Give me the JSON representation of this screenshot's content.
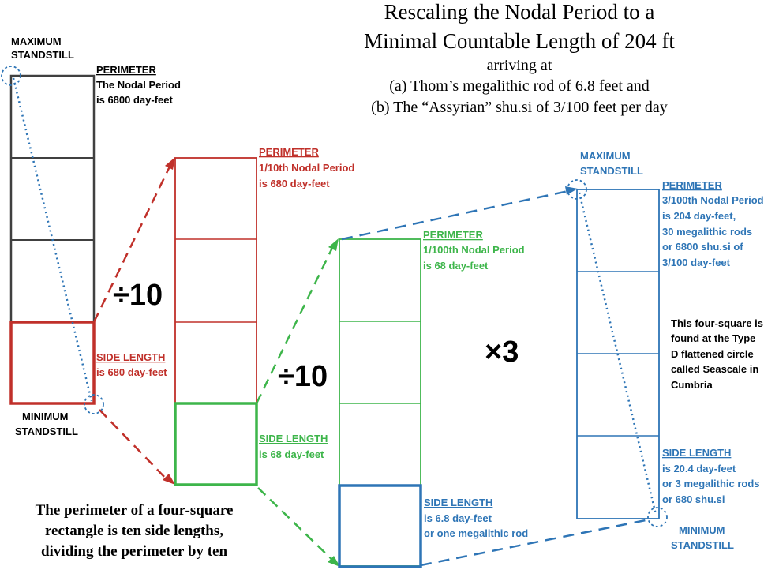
{
  "title": {
    "line1": "Rescaling the Nodal Period to a",
    "line2": "Minimal Countable Length of 204 ft",
    "line3": "arriving at",
    "line4": "(a) Thom’s megalithic rod of 6.8 feet and",
    "line5": "(b) The “Assyrian” shu.si of 3/100 feet per day"
  },
  "colors": {
    "black": "#404040",
    "red": "#c0302a",
    "green": "#3db54a",
    "blue": "#2e75b6",
    "text": "#000000"
  },
  "first_rect": {
    "max_label_1": "MAXIMUM",
    "max_label_2": "STANDSTILL",
    "perimeter_heading": "PERIMETER",
    "perimeter_line1": "The Nodal Period",
    "perimeter_line2": "is 6800 day-feet",
    "min_label_1": "MINIMUM",
    "min_label_2": "STANDSTILL"
  },
  "second_rect": {
    "perimeter_heading": "PERIMETER",
    "perimeter_line1": "1/10th Nodal Period",
    "perimeter_line2": "is 680 day-feet",
    "side_heading": "SIDE LENGTH",
    "side_line1": "is 680 day-feet"
  },
  "third_rect": {
    "perimeter_heading": "PERIMETER",
    "perimeter_line1": "1/100th Nodal Period",
    "perimeter_line2": "is 68 day-feet",
    "side_heading": "SIDE LENGTH",
    "side_line1": "is 68 day-feet"
  },
  "fourth_rect": {
    "side_heading": "SIDE LENGTH",
    "side_line1": "is 6.8 day-feet",
    "side_line2": "or one megalithic rod"
  },
  "fifth_rect": {
    "max_label_1": "MAXIMUM",
    "max_label_2": "STANDSTILL",
    "perimeter_heading": "PERIMETER",
    "perimeter_line1": "3/100th Nodal Period",
    "perimeter_line2": "is 204 day-feet,",
    "perimeter_line3": "30 megalithic rods",
    "perimeter_line4": "or 6800 shu.si of",
    "perimeter_line5": "3/100 day-feet",
    "side_heading": "SIDE LENGTH",
    "side_line1": "is 20.4 day-feet",
    "side_line2": "or 3 megalithic rods",
    "side_line3": "or 680 shu.si",
    "min_label_1": "MINIMUM",
    "min_label_2": "STANDSTILL"
  },
  "operators": {
    "divide_1": "÷10",
    "divide_2": "÷10",
    "multiply": "×3"
  },
  "note": {
    "line1": "This four-square is",
    "line2": "found at the Type",
    "line3": "D flattened circle",
    "line4": "called  Seascale in",
    "line5": "Cumbria"
  },
  "caption": {
    "line1": "The perimeter of a four-square",
    "line2": "rectangle is ten side lengths,",
    "line3": "dividing the perimeter by ten"
  }
}
